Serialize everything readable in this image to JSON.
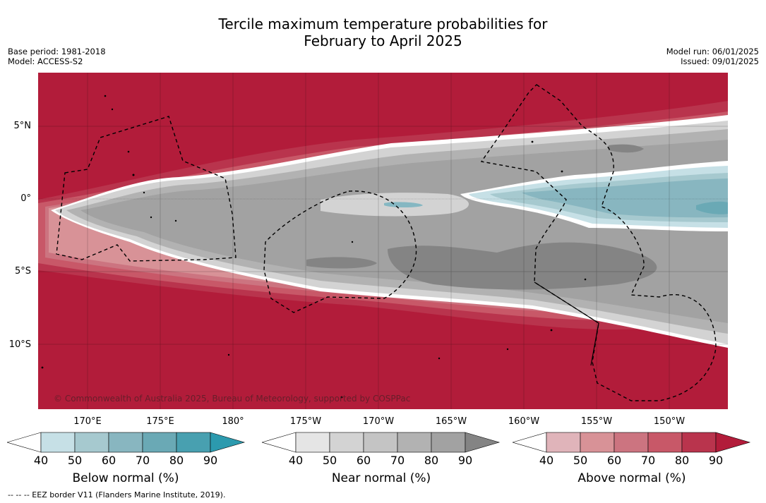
{
  "title": {
    "line1": "Tercile maximum temperature probabilities for",
    "line2": "February to April 2025"
  },
  "meta": {
    "base_period": "Base period: 1981-2018",
    "model": "Model: ACCESS-S2",
    "model_run": "Model run: 06/01/2025",
    "issued": "Issued: 09/01/2025"
  },
  "map": {
    "lat_labels": [
      "5°N",
      "0°",
      "5°S",
      "10°S"
    ],
    "lon_labels": [
      "170°E",
      "175°E",
      "180°",
      "175°W",
      "170°W",
      "165°W",
      "160°W",
      "155°W",
      "150°W"
    ],
    "copyright": "© Commonwealth of Australia 2025, Bureau of Meteorology, supported by COSPPac",
    "colors": {
      "above_background": "#b21c3a",
      "near_band": "#a2a2a2",
      "below_band": "#85b7c2",
      "eez_line": "#000000"
    }
  },
  "legend": {
    "ticks": [
      "40",
      "50",
      "60",
      "70",
      "80",
      "90"
    ],
    "below": {
      "label": "Below normal (%)",
      "colors": [
        "#ffffff",
        "#c6e0e6",
        "#a6c9cf",
        "#88b6c0",
        "#6aa9b5",
        "#48a0b0",
        "#2c9aae"
      ]
    },
    "near": {
      "label": "Near normal (%)",
      "colors": [
        "#ffffff",
        "#e5e5e5",
        "#d3d3d3",
        "#c4c4c4",
        "#b2b2b2",
        "#a2a2a2",
        "#848484"
      ]
    },
    "above": {
      "label": "Above normal (%)",
      "colors": [
        "#ffffff",
        "#e0b4ba",
        "#d89297",
        "#cc7480",
        "#c85868",
        "#b9344d",
        "#b21c3a"
      ]
    }
  },
  "footnote": "-- -- -- EEZ border V11 (Flanders Marine Institute, 2019)."
}
